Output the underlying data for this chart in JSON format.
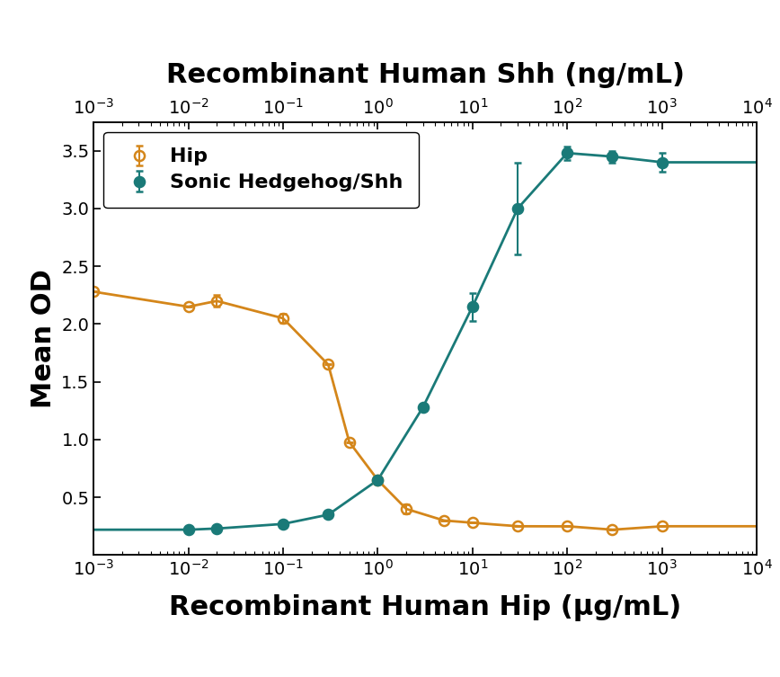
{
  "title_top": "Recombinant Human Shh (ng/mL)",
  "title_bottom": "Recombinant Human Hip (μg/mL)",
  "ylabel": "Mean OD",
  "ylim": [
    0,
    3.75
  ],
  "yticks": [
    0.5,
    1.0,
    1.5,
    2.0,
    2.5,
    3.0,
    3.5
  ],
  "background_color": "#ffffff",
  "hip_x": [
    0.001,
    0.01,
    0.02,
    0.1,
    0.3,
    0.5,
    1.0,
    2.0,
    5.0,
    10.0,
    30.0,
    100.0,
    300.0,
    1000.0
  ],
  "hip_y": [
    2.28,
    2.15,
    2.2,
    2.05,
    1.65,
    0.98,
    0.65,
    0.4,
    0.3,
    0.28,
    0.25,
    0.25,
    0.22,
    0.25
  ],
  "hip_yerr": [
    0.0,
    0.0,
    0.05,
    0.04,
    0.0,
    0.0,
    0.0,
    0.04,
    0.0,
    0.0,
    0.0,
    0.0,
    0.0,
    0.0
  ],
  "hip_color": "#d4861a",
  "hip_label": "Hip",
  "shh_x": [
    0.01,
    0.02,
    0.1,
    0.3,
    1.0,
    3.0,
    10.0,
    30.0,
    100.0,
    300.0,
    1000.0
  ],
  "shh_y": [
    0.22,
    0.23,
    0.27,
    0.35,
    0.65,
    1.28,
    2.15,
    3.0,
    3.48,
    3.45,
    3.4
  ],
  "shh_yerr": [
    0.0,
    0.0,
    0.0,
    0.0,
    0.02,
    0.0,
    0.12,
    0.4,
    0.06,
    0.05,
    0.08
  ],
  "shh_color": "#1a7a78",
  "shh_label": "Sonic Hedgehog/Shh",
  "title_fontsize": 22,
  "label_fontsize": 22,
  "tick_fontsize": 14,
  "legend_fontsize": 16
}
